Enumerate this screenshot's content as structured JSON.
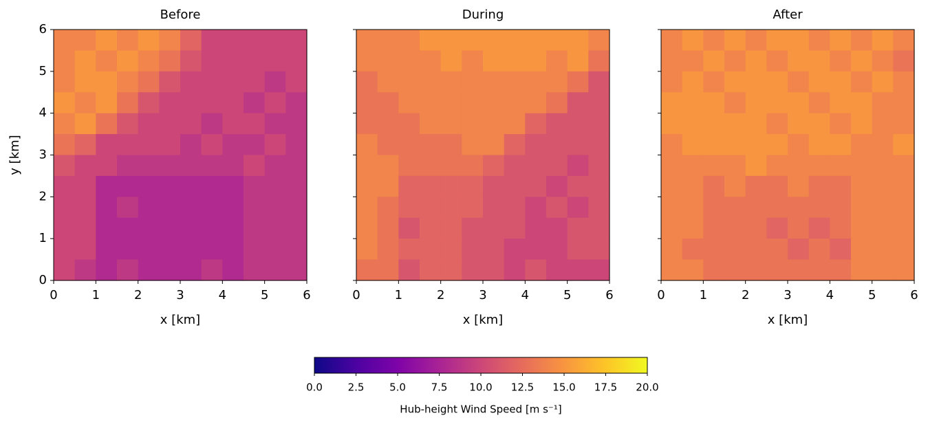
{
  "chart_data": {
    "type": "heatmap",
    "colormap": "plasma",
    "xlabel": "x [km]",
    "ylabel": "y [km]",
    "xlim": [
      0,
      6
    ],
    "ylim": [
      0,
      6
    ],
    "xticks": [
      0,
      1,
      2,
      3,
      4,
      5,
      6
    ],
    "yticks": [
      0,
      1,
      2,
      3,
      4,
      5,
      6
    ],
    "panels": [
      {
        "title": "Before",
        "z": [
          [
            14,
            14,
            15,
            14,
            15,
            14,
            12,
            10,
            10,
            10,
            10,
            10
          ],
          [
            14,
            15,
            14,
            15,
            14,
            13,
            11,
            10,
            10,
            10,
            10,
            10
          ],
          [
            14,
            15,
            15,
            14,
            13,
            11,
            10,
            10,
            10,
            10,
            9,
            10
          ],
          [
            15,
            14,
            15,
            13,
            11,
            10,
            10,
            10,
            10,
            9,
            10,
            9
          ],
          [
            14,
            15,
            13,
            11,
            10,
            10,
            10,
            9,
            10,
            10,
            9,
            9
          ],
          [
            13,
            12,
            10,
            10,
            10,
            10,
            9,
            10,
            9,
            9,
            10,
            9
          ],
          [
            11,
            10,
            10,
            9,
            9,
            9,
            9,
            9,
            9,
            10,
            9,
            9
          ],
          [
            10,
            10,
            8,
            8,
            8,
            8,
            8,
            8,
            8,
            9,
            9,
            9
          ],
          [
            10,
            10,
            8,
            9,
            8,
            8,
            8,
            8,
            8,
            9,
            9,
            9
          ],
          [
            10,
            10,
            8,
            8,
            8,
            8,
            8,
            8,
            8,
            9,
            9,
            9
          ],
          [
            10,
            10,
            8,
            8,
            8,
            8,
            8,
            8,
            8,
            9,
            9,
            9
          ],
          [
            10,
            9,
            8,
            9,
            8,
            8,
            8,
            9,
            8,
            9,
            9,
            9
          ]
        ]
      },
      {
        "title": "During",
        "z": [
          [
            14,
            14,
            14,
            15,
            15,
            15,
            15,
            15,
            15,
            15,
            15,
            14
          ],
          [
            14,
            14,
            14,
            14,
            15,
            14,
            15,
            15,
            15,
            14,
            15,
            13
          ],
          [
            13,
            14,
            14,
            14,
            14,
            14,
            14,
            14,
            14,
            14,
            13,
            11
          ],
          [
            13,
            13,
            14,
            14,
            14,
            14,
            14,
            14,
            14,
            13,
            11,
            11
          ],
          [
            13,
            13,
            13,
            14,
            14,
            14,
            14,
            14,
            12,
            11,
            11,
            11
          ],
          [
            14,
            13,
            13,
            13,
            13,
            14,
            14,
            12,
            11,
            11,
            11,
            11
          ],
          [
            14,
            14,
            13,
            13,
            13,
            13,
            12,
            11,
            11,
            11,
            10,
            11
          ],
          [
            14,
            14,
            12,
            12,
            12,
            12,
            11,
            11,
            11,
            10,
            11,
            11
          ],
          [
            14,
            13,
            12,
            12,
            12,
            12,
            11,
            11,
            10,
            11,
            10,
            11
          ],
          [
            14,
            13,
            11,
            12,
            12,
            11,
            11,
            11,
            10,
            10,
            11,
            11
          ],
          [
            14,
            13,
            12,
            12,
            12,
            11,
            11,
            10,
            10,
            10,
            11,
            11
          ],
          [
            13,
            13,
            11,
            12,
            12,
            11,
            11,
            10,
            11,
            10,
            10,
            10
          ]
        ]
      },
      {
        "title": "After",
        "z": [
          [
            14,
            15,
            14,
            15,
            14,
            15,
            15,
            14,
            15,
            14,
            15,
            14
          ],
          [
            14,
            14,
            15,
            14,
            15,
            14,
            15,
            15,
            14,
            15,
            14,
            13
          ],
          [
            14,
            15,
            14,
            15,
            15,
            15,
            14,
            15,
            15,
            14,
            15,
            14
          ],
          [
            15,
            15,
            15,
            14,
            15,
            15,
            15,
            14,
            15,
            15,
            14,
            14
          ],
          [
            15,
            15,
            15,
            15,
            15,
            14,
            15,
            15,
            14,
            15,
            14,
            14
          ],
          [
            14,
            15,
            15,
            15,
            15,
            15,
            14,
            15,
            15,
            14,
            14,
            15
          ],
          [
            14,
            14,
            14,
            14,
            15,
            14,
            14,
            14,
            14,
            14,
            14,
            14
          ],
          [
            14,
            14,
            13,
            14,
            13,
            13,
            14,
            13,
            13,
            14,
            14,
            14
          ],
          [
            14,
            14,
            13,
            13,
            13,
            13,
            13,
            13,
            13,
            14,
            14,
            14
          ],
          [
            14,
            14,
            13,
            13,
            13,
            12,
            13,
            12,
            13,
            14,
            14,
            14
          ],
          [
            14,
            13,
            13,
            13,
            13,
            13,
            12,
            13,
            12,
            14,
            14,
            14
          ],
          [
            14,
            14,
            13,
            13,
            13,
            13,
            13,
            13,
            13,
            14,
            14,
            14
          ]
        ]
      }
    ],
    "colorbar": {
      "label": "Hub-height Wind Speed [m s⁻¹]",
      "lim": [
        0,
        20
      ],
      "ticks": [
        {
          "value": 0,
          "label": "0.0"
        },
        {
          "value": 2.5,
          "label": "2.5"
        },
        {
          "value": 5,
          "label": "5.0"
        },
        {
          "value": 7.5,
          "label": "7.5"
        },
        {
          "value": 10,
          "label": "10.0"
        },
        {
          "value": 12.5,
          "label": "12.5"
        },
        {
          "value": 15,
          "label": "15.0"
        },
        {
          "value": 17.5,
          "label": "17.5"
        },
        {
          "value": 20,
          "label": "20.0"
        }
      ]
    }
  }
}
